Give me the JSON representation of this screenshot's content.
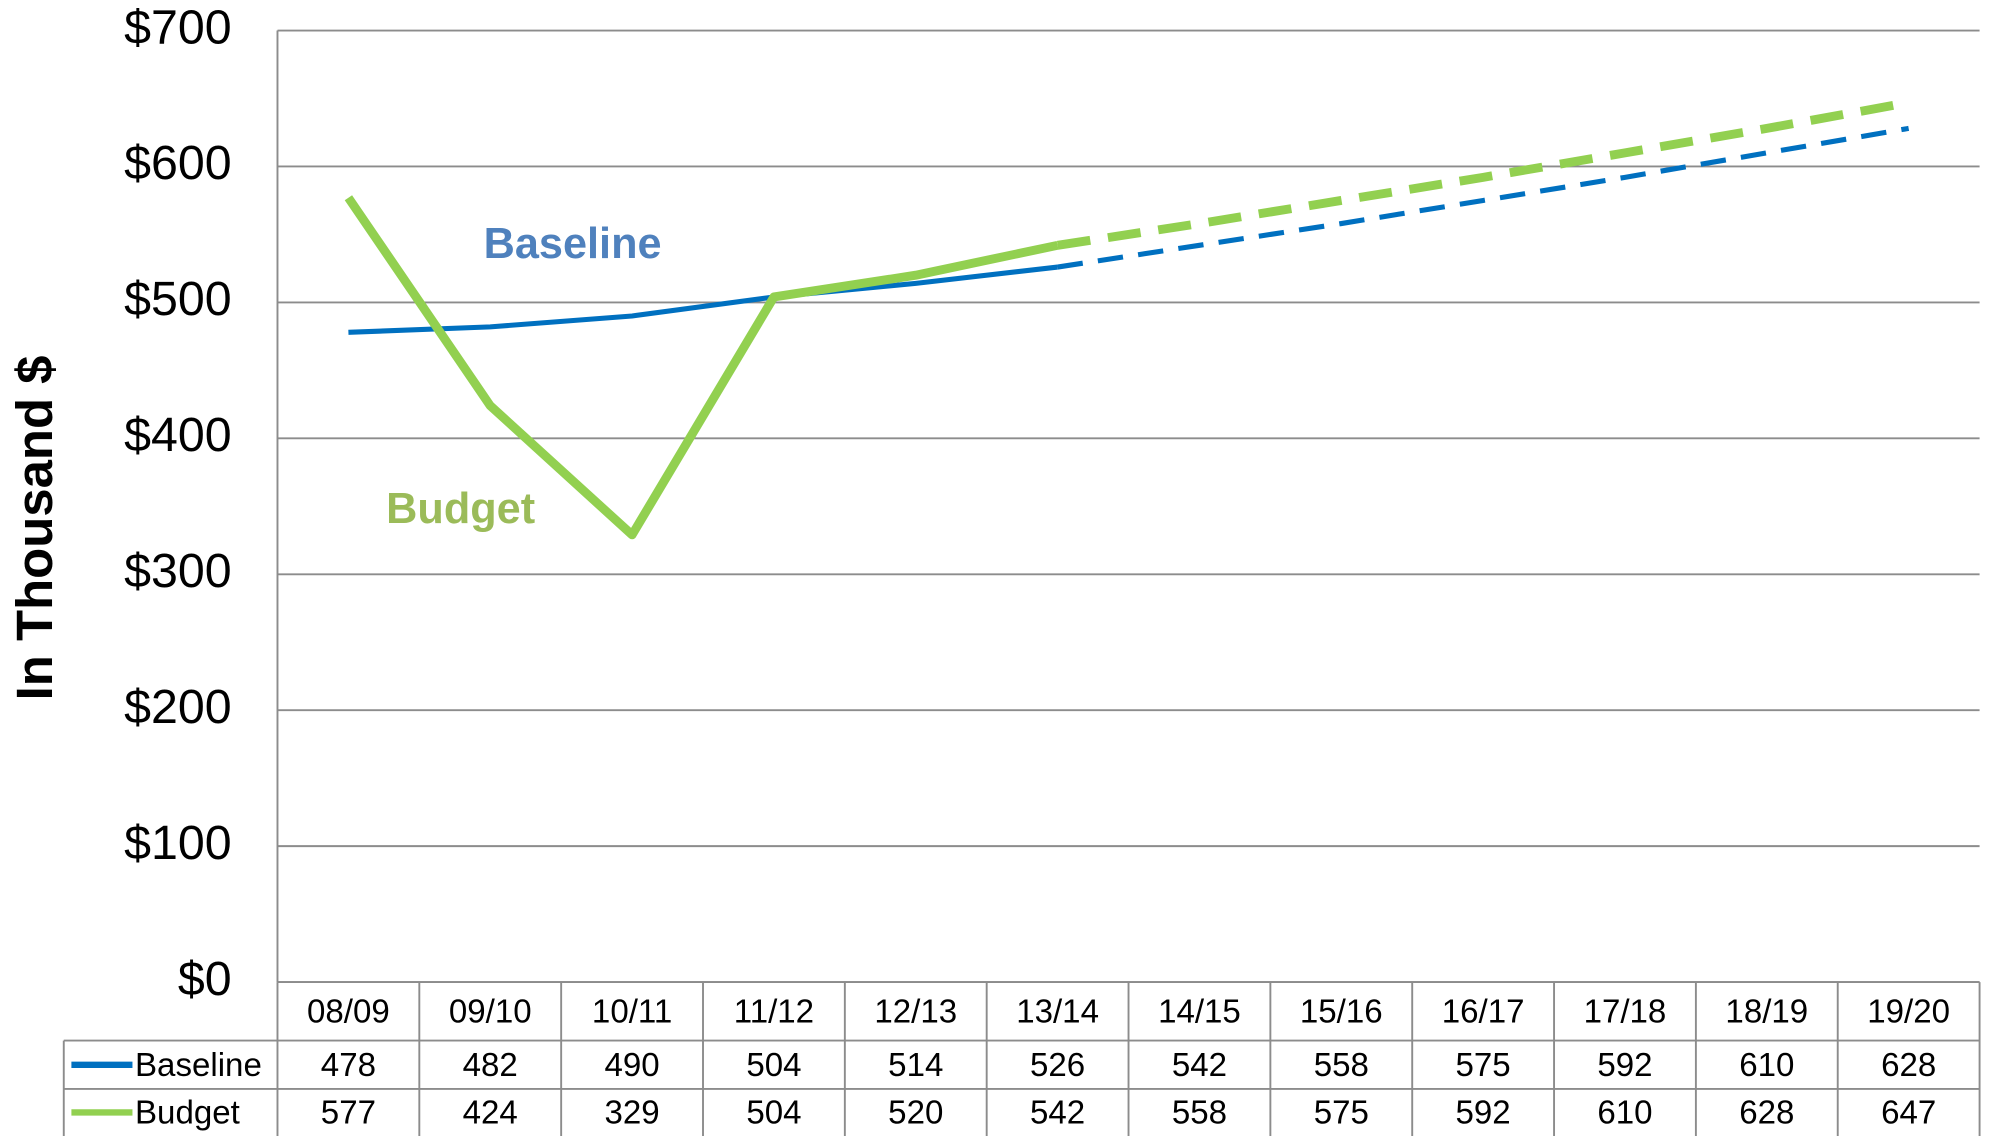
{
  "chart_data": {
    "type": "line",
    "y_label": "In Thousand $",
    "categories": [
      "08/09",
      "09/10",
      "10/11",
      "11/12",
      "12/13",
      "13/14",
      "14/15",
      "15/16",
      "16/17",
      "17/18",
      "18/19",
      "19/20"
    ],
    "series": [
      {
        "name": "Baseline",
        "color": "#0070c0",
        "label_color": "#4f81bd",
        "width": 4,
        "values": [
          478,
          482,
          490,
          504,
          514,
          526,
          542,
          558,
          575,
          592,
          610,
          628
        ]
      },
      {
        "name": "Budget",
        "color": "#92d050",
        "label_color": "#9bbb59",
        "width": 7,
        "values": [
          577,
          424,
          329,
          504,
          520,
          542,
          558,
          575,
          592,
          610,
          628,
          647
        ]
      }
    ],
    "dashed_from_index": 5,
    "ylim": [
      0,
      700
    ],
    "yticks": [
      {
        "value": 0,
        "label": "$0"
      },
      {
        "value": 100,
        "label": "$100"
      },
      {
        "value": 200,
        "label": "$200"
      },
      {
        "value": 300,
        "label": "$300"
      },
      {
        "value": 400,
        "label": "$400"
      },
      {
        "value": 500,
        "label": "$500"
      },
      {
        "value": 600,
        "label": "$600"
      },
      {
        "value": 700,
        "label": "$700"
      }
    ],
    "grid": true,
    "data_table": true
  }
}
